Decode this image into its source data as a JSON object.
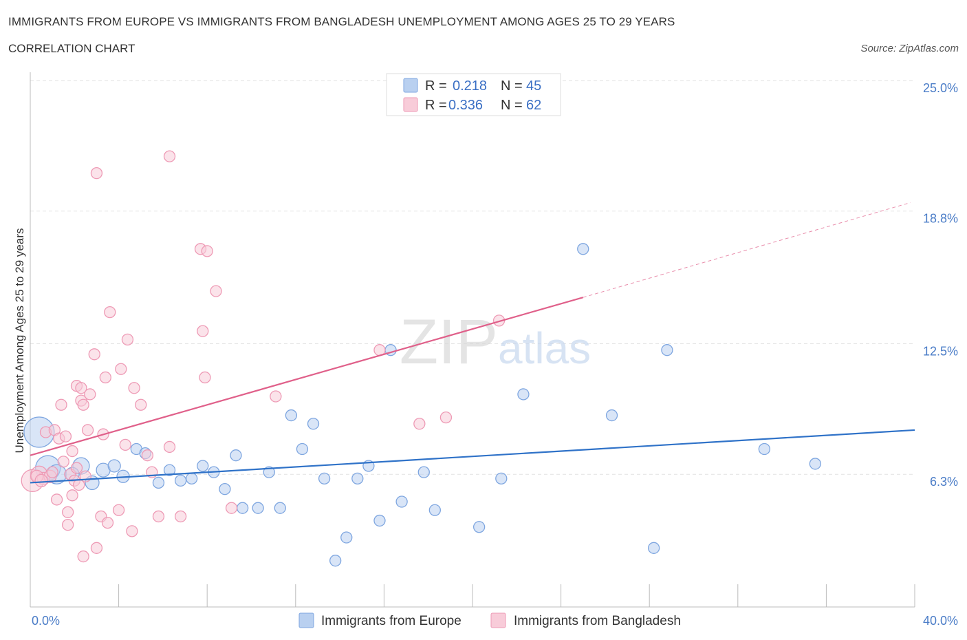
{
  "chart_data": {
    "type": "scatter",
    "title": "IMMIGRANTS FROM EUROPE VS IMMIGRANTS FROM BANGLADESH UNEMPLOYMENT AMONG AGES 25 TO 29 YEARS",
    "subtitle": "CORRELATION CHART",
    "source": "Source: ZipAtlas.com",
    "watermark": "ZIPatlas",
    "xlabel": "",
    "ylabel": "Unemployment Among Ages 25 to 29 years",
    "xlim": [
      0,
      40
    ],
    "ylim": [
      0,
      25
    ],
    "x_tick_labels": [
      {
        "value": 0,
        "label": "0.0%"
      },
      {
        "value": 40,
        "label": "40.0%"
      }
    ],
    "y_tick_labels": [
      {
        "value": 6.3,
        "label": "6.3%"
      },
      {
        "value": 12.5,
        "label": "12.5%"
      },
      {
        "value": 18.8,
        "label": "18.8%"
      },
      {
        "value": 25.0,
        "label": "25.0%"
      }
    ],
    "legend": [
      {
        "r_label": "R =",
        "r": "0.218",
        "n_label": "N =",
        "n": "45"
      },
      {
        "r_label": "R =",
        "r": "0.336",
        "n_label": "N =",
        "n": "62"
      }
    ],
    "series": [
      {
        "name": "Immigrants from Europe",
        "color": "#7ea6e0",
        "fill": "#b9d0f0",
        "trend_color": "#2f72c8",
        "trend": {
          "x0": 0,
          "y0": 5.9,
          "x1": 40,
          "y1": 8.4
        },
        "points": [
          [
            0.4,
            8.3,
            22
          ],
          [
            0.8,
            6.6,
            18
          ],
          [
            1.2,
            6.3,
            14
          ],
          [
            2.3,
            6.7,
            12
          ],
          [
            2.8,
            5.9,
            10
          ],
          [
            3.3,
            6.5,
            10
          ],
          [
            3.8,
            6.7,
            9
          ],
          [
            4.2,
            6.2,
            9
          ],
          [
            4.8,
            7.5,
            8
          ],
          [
            5.2,
            7.3,
            8
          ],
          [
            5.8,
            5.9,
            8
          ],
          [
            6.3,
            6.5,
            8
          ],
          [
            6.8,
            6.0,
            8
          ],
          [
            7.3,
            6.1,
            8
          ],
          [
            7.8,
            6.7,
            8
          ],
          [
            8.3,
            6.4,
            8
          ],
          [
            8.8,
            5.6,
            8
          ],
          [
            9.3,
            7.2,
            8
          ],
          [
            9.6,
            4.7,
            8
          ],
          [
            10.3,
            4.7,
            8
          ],
          [
            10.8,
            6.4,
            8
          ],
          [
            11.3,
            4.7,
            8
          ],
          [
            11.8,
            9.1,
            8
          ],
          [
            12.3,
            7.5,
            8
          ],
          [
            12.8,
            8.7,
            8
          ],
          [
            13.3,
            6.1,
            8
          ],
          [
            13.8,
            2.2,
            8
          ],
          [
            14.3,
            3.3,
            8
          ],
          [
            14.8,
            6.1,
            8
          ],
          [
            15.3,
            6.7,
            8
          ],
          [
            15.8,
            4.1,
            8
          ],
          [
            16.3,
            12.2,
            8
          ],
          [
            16.8,
            5.0,
            8
          ],
          [
            17.8,
            6.4,
            8
          ],
          [
            18.3,
            4.6,
            8
          ],
          [
            20.3,
            3.8,
            8
          ],
          [
            21.3,
            6.1,
            8
          ],
          [
            22.3,
            10.1,
            8
          ],
          [
            25.0,
            17.0,
            8
          ],
          [
            26.3,
            9.1,
            8
          ],
          [
            28.2,
            2.8,
            8
          ],
          [
            28.8,
            12.2,
            8
          ],
          [
            33.2,
            7.5,
            8
          ],
          [
            35.5,
            6.8,
            8
          ],
          [
            1.9,
            6.3,
            10
          ]
        ]
      },
      {
        "name": "Immigrants from Bangladesh",
        "color": "#ee9ab5",
        "fill": "#f8ccd9",
        "trend_color": "#e0608a",
        "trend": {
          "x0": 0,
          "y0": 7.2,
          "x1": 25,
          "y1": 14.7
        },
        "trend_dashed_to": {
          "x": 39.8,
          "y": 19.2
        },
        "points": [
          [
            0.1,
            6.0,
            16
          ],
          [
            0.4,
            6.3,
            12
          ],
          [
            0.6,
            6.1,
            9
          ],
          [
            0.9,
            6.2,
            9
          ],
          [
            0.7,
            8.3,
            8
          ],
          [
            1.1,
            8.4,
            8
          ],
          [
            1.2,
            5.1,
            8
          ],
          [
            1.3,
            8.0,
            8
          ],
          [
            1.4,
            9.6,
            8
          ],
          [
            1.5,
            6.9,
            8
          ],
          [
            1.6,
            8.1,
            8
          ],
          [
            1.7,
            4.5,
            8
          ],
          [
            1.7,
            3.9,
            8
          ],
          [
            1.8,
            6.3,
            8
          ],
          [
            1.9,
            7.4,
            8
          ],
          [
            1.9,
            5.3,
            8
          ],
          [
            2.0,
            6.0,
            8
          ],
          [
            2.1,
            6.6,
            8
          ],
          [
            2.1,
            10.5,
            8
          ],
          [
            2.2,
            5.8,
            8
          ],
          [
            2.3,
            10.4,
            8
          ],
          [
            2.3,
            9.8,
            8
          ],
          [
            2.4,
            9.6,
            8
          ],
          [
            2.4,
            2.4,
            8
          ],
          [
            2.6,
            8.4,
            8
          ],
          [
            2.7,
            10.1,
            8
          ],
          [
            2.9,
            12.0,
            8
          ],
          [
            3.0,
            20.6,
            8
          ],
          [
            3.0,
            2.8,
            8
          ],
          [
            3.2,
            4.3,
            8
          ],
          [
            3.3,
            8.2,
            8
          ],
          [
            3.4,
            10.9,
            8
          ],
          [
            3.5,
            4.0,
            8
          ],
          [
            3.6,
            14.0,
            8
          ],
          [
            4.0,
            4.6,
            8
          ],
          [
            4.1,
            11.3,
            8
          ],
          [
            4.3,
            7.7,
            8
          ],
          [
            4.4,
            12.7,
            8
          ],
          [
            4.6,
            3.6,
            8
          ],
          [
            4.7,
            10.4,
            8
          ],
          [
            5.0,
            9.6,
            8
          ],
          [
            5.3,
            7.2,
            8
          ],
          [
            5.5,
            6.4,
            8
          ],
          [
            5.8,
            4.3,
            8
          ],
          [
            6.3,
            21.4,
            8
          ],
          [
            6.3,
            7.6,
            8
          ],
          [
            6.8,
            4.3,
            8
          ],
          [
            7.7,
            17.0,
            8
          ],
          [
            7.8,
            13.1,
            8
          ],
          [
            7.9,
            10.9,
            8
          ],
          [
            8.0,
            16.9,
            8
          ],
          [
            8.4,
            15.0,
            8
          ],
          [
            9.1,
            4.7,
            8
          ],
          [
            11.1,
            10.0,
            8
          ],
          [
            15.8,
            12.2,
            8
          ],
          [
            17.6,
            8.7,
            8
          ],
          [
            18.8,
            9.0,
            8
          ],
          [
            21.2,
            13.6,
            8
          ],
          [
            0.3,
            6.2,
            9
          ],
          [
            0.5,
            6.0,
            9
          ],
          [
            1.0,
            6.4,
            8
          ],
          [
            2.5,
            6.2,
            8
          ]
        ]
      }
    ]
  },
  "legend_bottom": [
    {
      "label": "Immigrants from Europe"
    },
    {
      "label": "Immigrants from Bangladesh"
    }
  ]
}
